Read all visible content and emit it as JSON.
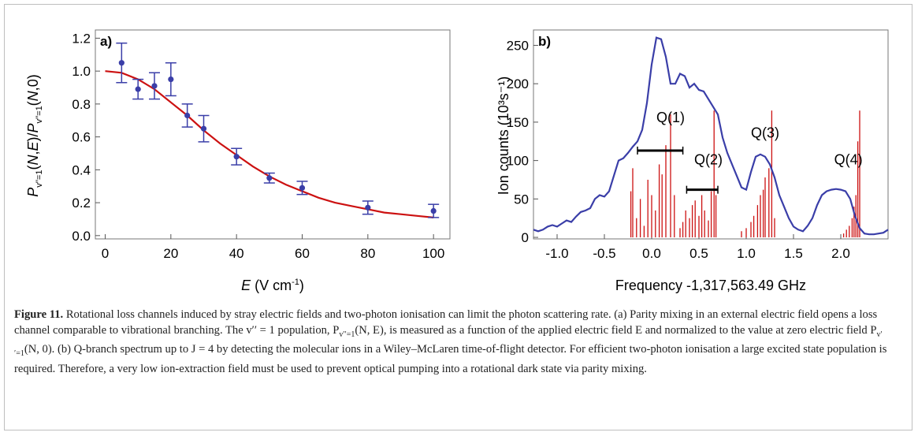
{
  "chart_data": [
    {
      "panel_label": "a)",
      "type": "scatter",
      "xlabel": "E (V cm-1)",
      "ylabel": "P_{v''=1}(N,E)/P_{v''=1}(N,0)",
      "xlim": [
        -3,
        105
      ],
      "ylim": [
        -0.02,
        1.25
      ],
      "xticks": [
        0,
        20,
        40,
        60,
        80,
        100
      ],
      "yticks": [
        0.0,
        0.2,
        0.4,
        0.6,
        0.8,
        1.0,
        1.2
      ],
      "ytick_labels": [
        "0.0",
        "0.2",
        "0.4",
        "0.6",
        "0.8",
        "1.0",
        "1.2"
      ],
      "series": [
        {
          "type": "scatter-errorbar",
          "color": "#3a3ea8",
          "points": [
            {
              "x": 5,
              "y": 1.05,
              "err": 0.12
            },
            {
              "x": 10,
              "y": 0.89,
              "err": 0.06
            },
            {
              "x": 15,
              "y": 0.91,
              "err": 0.08
            },
            {
              "x": 20,
              "y": 0.95,
              "err": 0.1
            },
            {
              "x": 25,
              "y": 0.73,
              "err": 0.07
            },
            {
              "x": 30,
              "y": 0.65,
              "err": 0.08
            },
            {
              "x": 40,
              "y": 0.48,
              "err": 0.05
            },
            {
              "x": 50,
              "y": 0.35,
              "err": 0.03
            },
            {
              "x": 60,
              "y": 0.29,
              "err": 0.04
            },
            {
              "x": 80,
              "y": 0.17,
              "err": 0.04
            },
            {
              "x": 100,
              "y": 0.15,
              "err": 0.04
            }
          ]
        },
        {
          "type": "line",
          "color": "#cc1111",
          "x": [
            0,
            5,
            10,
            15,
            20,
            25,
            30,
            35,
            40,
            45,
            50,
            55,
            60,
            65,
            70,
            75,
            80,
            85,
            90,
            95,
            100
          ],
          "y": [
            1.0,
            0.99,
            0.95,
            0.89,
            0.81,
            0.73,
            0.64,
            0.56,
            0.49,
            0.42,
            0.36,
            0.31,
            0.27,
            0.23,
            0.2,
            0.18,
            0.16,
            0.14,
            0.13,
            0.12,
            0.11
          ]
        }
      ]
    },
    {
      "panel_label": "b)",
      "type": "line",
      "xlabel": "Frequency -1,317,563.49 GHz",
      "ylabel": "Ion counts (10³s⁻¹)",
      "xlim": [
        -1.25,
        2.5
      ],
      "ylim": [
        -2,
        270
      ],
      "xticks": [
        -1.0,
        -0.5,
        0.0,
        0.5,
        1.0,
        1.5,
        2.0
      ],
      "xtick_labels": [
        "-1.0",
        "-0.5",
        "0.0",
        "0.5",
        "1.0",
        "1.5",
        "2.0"
      ],
      "yticks": [
        0,
        50,
        100,
        150,
        200,
        250
      ],
      "series": [
        {
          "type": "line",
          "color": "#3a3ea8",
          "x": [
            -1.25,
            -1.2,
            -1.15,
            -1.1,
            -1.05,
            -1.0,
            -0.95,
            -0.9,
            -0.85,
            -0.8,
            -0.75,
            -0.7,
            -0.65,
            -0.6,
            -0.55,
            -0.5,
            -0.45,
            -0.4,
            -0.35,
            -0.3,
            -0.25,
            -0.2,
            -0.15,
            -0.1,
            -0.05,
            0.0,
            0.05,
            0.1,
            0.15,
            0.2,
            0.25,
            0.3,
            0.35,
            0.4,
            0.45,
            0.5,
            0.55,
            0.6,
            0.65,
            0.7,
            0.75,
            0.8,
            0.85,
            0.9,
            0.95,
            1.0,
            1.05,
            1.1,
            1.15,
            1.2,
            1.25,
            1.3,
            1.35,
            1.4,
            1.45,
            1.5,
            1.55,
            1.6,
            1.65,
            1.7,
            1.75,
            1.8,
            1.85,
            1.9,
            1.95,
            2.0,
            2.05,
            2.1,
            2.15,
            2.2,
            2.25,
            2.3,
            2.35,
            2.4,
            2.45,
            2.5
          ],
          "y": [
            10,
            8,
            10,
            14,
            16,
            14,
            18,
            22,
            20,
            27,
            33,
            35,
            38,
            50,
            55,
            53,
            60,
            80,
            100,
            103,
            110,
            118,
            125,
            140,
            175,
            225,
            260,
            258,
            235,
            200,
            200,
            213,
            210,
            195,
            200,
            192,
            190,
            180,
            170,
            160,
            130,
            110,
            95,
            80,
            65,
            62,
            85,
            105,
            108,
            105,
            95,
            78,
            55,
            40,
            25,
            14,
            10,
            8,
            15,
            25,
            42,
            55,
            60,
            62,
            63,
            62,
            60,
            50,
            28,
            12,
            5,
            4,
            4,
            5,
            6,
            10
          ]
        },
        {
          "type": "sticks",
          "color": "#cc1111",
          "x": [
            -0.22,
            -0.2,
            -0.16,
            -0.12,
            -0.08,
            -0.04,
            0.0,
            0.04,
            0.08,
            0.11,
            0.15,
            0.2,
            0.24,
            0.3,
            0.33,
            0.36,
            0.4,
            0.43,
            0.46,
            0.5,
            0.53,
            0.56,
            0.6,
            0.63,
            0.66,
            0.68,
            0.95,
            1.0,
            1.05,
            1.08,
            1.12,
            1.15,
            1.18,
            1.2,
            1.24,
            1.27,
            1.3,
            2.03,
            2.06,
            2.09,
            2.12,
            2.14,
            2.16,
            2.18,
            2.2
          ],
          "y": [
            60,
            90,
            25,
            50,
            15,
            75,
            55,
            35,
            95,
            82,
            120,
            160,
            55,
            12,
            20,
            35,
            25,
            42,
            48,
            28,
            55,
            35,
            22,
            60,
            165,
            55,
            8,
            12,
            20,
            28,
            42,
            55,
            62,
            78,
            90,
            165,
            25,
            5,
            10,
            15,
            25,
            40,
            55,
            125,
            165
          ]
        }
      ],
      "annotations": [
        {
          "label": "Q(1)",
          "x": 0.2,
          "y": 150,
          "bar": [
            -0.15,
            0.33
          ],
          "bar_y": 113
        },
        {
          "label": "Q(2)",
          "x": 0.6,
          "y": 95,
          "bar": [
            0.37,
            0.7
          ],
          "bar_y": 62
        },
        {
          "label": "Q(3)",
          "x": 1.2,
          "y": 130,
          "bar": null,
          "bar_y": null
        },
        {
          "label": "Q(4)",
          "x": 2.08,
          "y": 95,
          "bar": null,
          "bar_y": null
        }
      ]
    }
  ],
  "caption": {
    "figure_label": "Figure 11.",
    "sentence_1": " Rotational loss channels induced by stray electric fields and two-photon ionisation can limit the photon scattering rate. (a) Parity mixing in an external electric field opens a loss channel comparable to vibrational branching. The v′′ = 1 population, P",
    "sentence_1b": "(N, E), is measured as a function of the applied electric field E and normalized to the value at zero electric field P",
    "sentence_2": "(N, 0). (b) Q-branch spectrum up to J = 4 by detecting the molecular ions in a Wiley–McLaren time-of-flight detector. For efficient two-photon ionisation a large excited state population is required. Therefore, a very low ion-extraction field must be used to prevent optical pumping into a rotational dark state via parity mixing.",
    "subscript": "v′′=1"
  }
}
